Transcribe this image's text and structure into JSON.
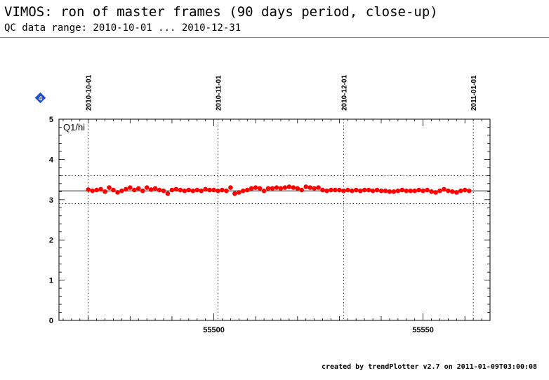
{
  "header": {
    "title": "VIMOS: ron of master frames (90 days period, close-up)",
    "subtitle": "QC data range: 2010-10-01 ... 2010-12-31"
  },
  "footer": {
    "text": "created by trendPlotter v2.7 on 2011-01-09T03:00:08"
  },
  "badge": {
    "label": "4",
    "color": "#1f4fd8"
  },
  "chart_data": {
    "type": "scatter",
    "panel_label": "Q1/hi",
    "xlim": [
      55463,
      55566
    ],
    "ylim": [
      0,
      5
    ],
    "x_ticks": [
      55500,
      55550
    ],
    "y_ticks": [
      0,
      1,
      2,
      3,
      4,
      5
    ],
    "date_markers": [
      {
        "label": "2010-10-01",
        "x": 55470
      },
      {
        "label": "2010-11-01",
        "x": 55501
      },
      {
        "label": "2010-12-01",
        "x": 55531
      },
      {
        "label": "2011-01-01",
        "x": 55562
      }
    ],
    "reference_lines": {
      "mean": 3.22,
      "upper": 3.6,
      "lower": 2.9
    },
    "point_color": "#ff0000",
    "grid": false,
    "series": [
      {
        "x": [
          55470,
          55471,
          55472,
          55473,
          55474,
          55475,
          55476,
          55477,
          55478,
          55479,
          55480,
          55481,
          55482,
          55483,
          55484,
          55485,
          55486,
          55487,
          55488,
          55489,
          55490,
          55491,
          55492,
          55493,
          55494,
          55495,
          55496,
          55497,
          55498,
          55499,
          55500,
          55501,
          55502,
          55503,
          55504,
          55505,
          55506,
          55507,
          55508,
          55509,
          55510,
          55511,
          55512,
          55513,
          55514,
          55515,
          55516,
          55517,
          55518,
          55519,
          55520,
          55521,
          55522,
          55523,
          55524,
          55525,
          55526,
          55527,
          55528,
          55529,
          55530,
          55531,
          55532,
          55533,
          55534,
          55535,
          55536,
          55537,
          55538,
          55539,
          55540,
          55541,
          55542,
          55543,
          55544,
          55545,
          55546,
          55547,
          55548,
          55549,
          55550,
          55551,
          55552,
          55553,
          55554,
          55555,
          55556,
          55557,
          55558,
          55559,
          55560,
          55561
        ],
        "y": [
          3.25,
          3.22,
          3.24,
          3.26,
          3.2,
          3.3,
          3.24,
          3.18,
          3.22,
          3.26,
          3.3,
          3.24,
          3.28,
          3.22,
          3.3,
          3.25,
          3.28,
          3.24,
          3.22,
          3.15,
          3.24,
          3.26,
          3.24,
          3.22,
          3.24,
          3.22,
          3.24,
          3.22,
          3.26,
          3.24,
          3.24,
          3.22,
          3.24,
          3.22,
          3.3,
          3.15,
          3.18,
          3.22,
          3.24,
          3.28,
          3.3,
          3.28,
          3.22,
          3.28,
          3.28,
          3.3,
          3.28,
          3.3,
          3.32,
          3.3,
          3.28,
          3.24,
          3.32,
          3.3,
          3.28,
          3.3,
          3.24,
          3.22,
          3.24,
          3.24,
          3.24,
          3.22,
          3.24,
          3.22,
          3.24,
          3.22,
          3.24,
          3.24,
          3.22,
          3.24,
          3.22,
          3.22,
          3.2,
          3.2,
          3.22,
          3.24,
          3.22,
          3.22,
          3.22,
          3.24,
          3.22,
          3.24,
          3.2,
          3.18,
          3.22,
          3.26,
          3.22,
          3.2,
          3.18,
          3.22,
          3.24,
          3.22
        ]
      }
    ]
  }
}
